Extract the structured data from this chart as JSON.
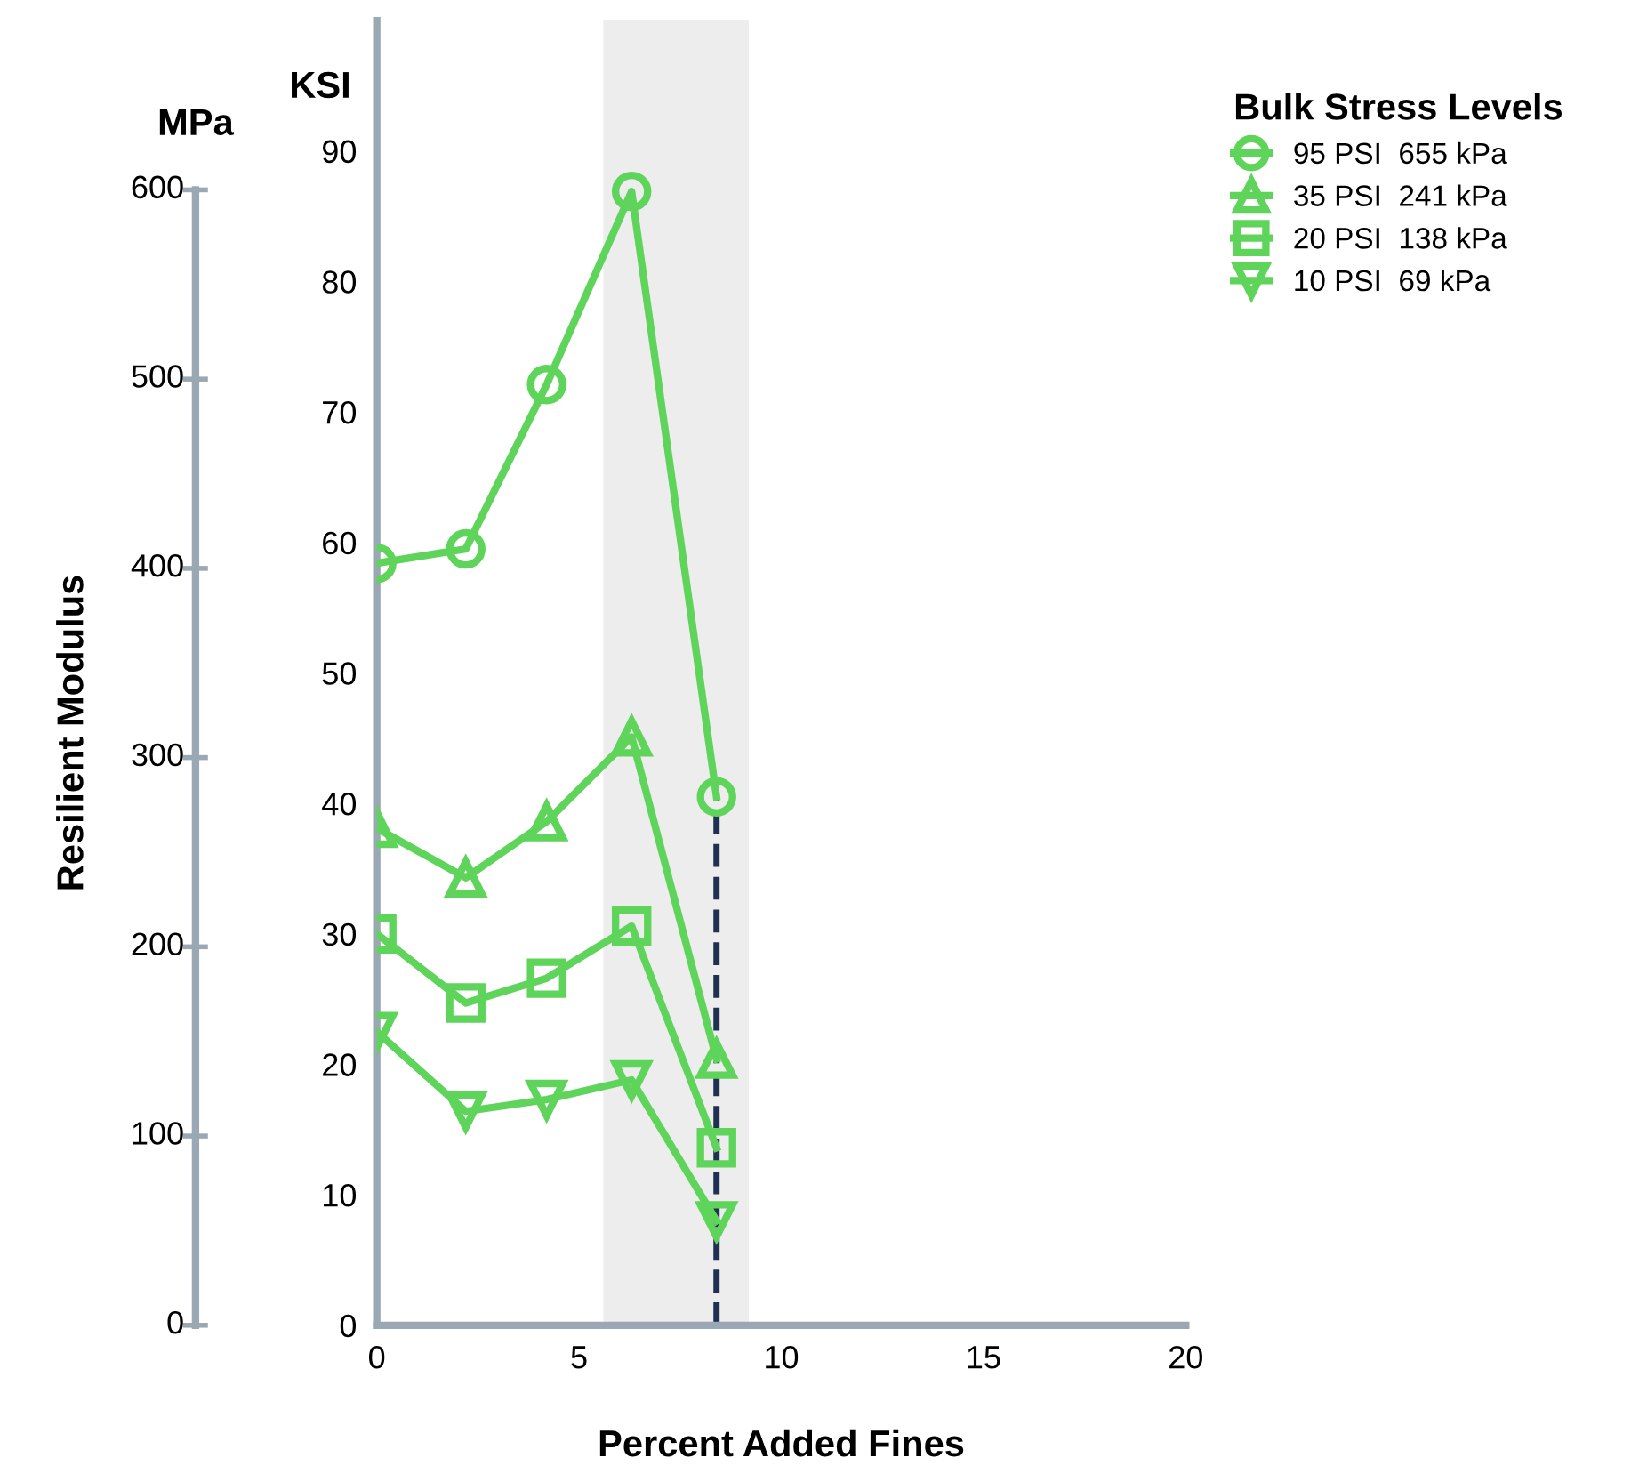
{
  "chart_data": {
    "type": "line",
    "xlabel": "Percent Added Fines",
    "ylabel": "KSI",
    "y2label": "MPa",
    "legend_title": "Bulk Stress Levels",
    "legend": "top right",
    "annotations": [
      "Resilient Modulus"
    ],
    "xlim": [
      0,
      20
    ],
    "xticks": [
      0,
      5,
      10,
      15,
      20
    ],
    "ylim": [
      0,
      100
    ],
    "yticks": [
      0,
      10,
      20,
      30,
      40,
      50,
      60,
      70,
      80,
      90
    ],
    "y2lim": [
      0,
      689.5
    ],
    "y2ticks": [
      0,
      100,
      200,
      300,
      400,
      500,
      600
    ],
    "grid": false,
    "line_style": "solid",
    "bands": [
      {
        "axis": "x",
        "from": 5.6,
        "to": 9.2,
        "color": "#ededed"
      }
    ],
    "ref_lines": [
      {
        "axis": "x",
        "value": 8.4,
        "color": "#1f3050",
        "line_style": "dashed"
      }
    ],
    "x": [
      0,
      2.2,
      4.2,
      6.3,
      8.4
    ],
    "series": [
      {
        "name": "95 PSI  655 kPa",
        "color": "#5fd45a",
        "marker": "circle",
        "values": [
          58.4,
          59.5,
          72.1,
          86.9,
          40.5
        ]
      },
      {
        "name": "35 PSI  241 kPa",
        "color": "#5fd45a",
        "marker": "triangle",
        "values": [
          38.1,
          34.3,
          38.6,
          45.1,
          20.4
        ]
      },
      {
        "name": "20 PSI  138 kPa",
        "color": "#5fd45a",
        "marker": "square",
        "values": [
          30.0,
          24.7,
          26.6,
          30.6,
          13.6
        ]
      },
      {
        "name": "10 PSI  69 kPa",
        "color": "#5fd45a",
        "marker": "triangle_down",
        "values": [
          22.5,
          16.4,
          17.3,
          18.8,
          8.0
        ]
      }
    ]
  }
}
